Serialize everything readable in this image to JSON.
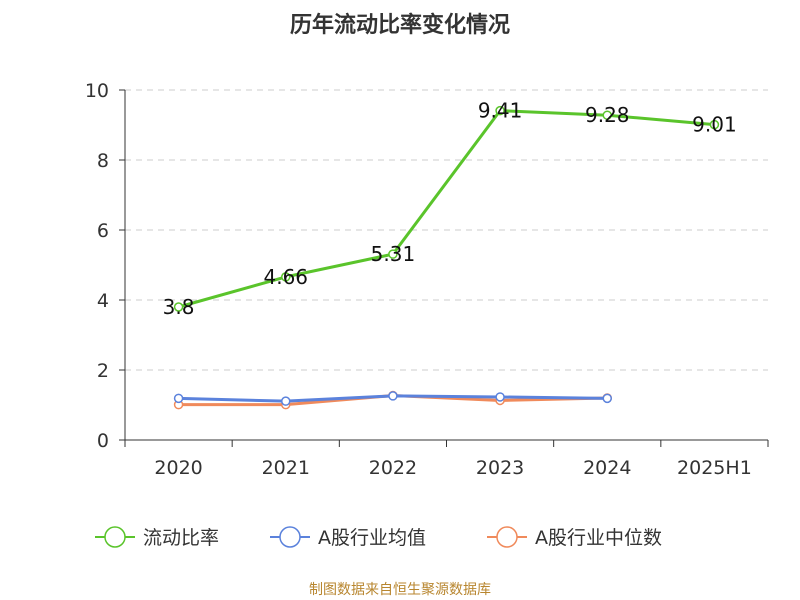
{
  "chart_data": {
    "type": "line",
    "title": "历年流动比率变化情况",
    "categories": [
      "2020",
      "2021",
      "2022",
      "2023",
      "2024",
      "2025H1"
    ],
    "ylim": [
      0,
      10
    ],
    "yticks": [
      0,
      2,
      4,
      6,
      8,
      10
    ],
    "grid": true,
    "legend_position": "bottom",
    "series": [
      {
        "name": "流动比率",
        "color": "#5ac42b",
        "values": [
          3.8,
          4.66,
          5.31,
          9.41,
          9.28,
          9.01
        ],
        "labels": [
          "3.8",
          "4.66",
          "5.31",
          "9.41",
          "9.28",
          "9.01"
        ]
      },
      {
        "name": "A股行业均值",
        "color": "#5b82dc",
        "values": [
          1.19,
          1.11,
          1.26,
          1.23,
          1.19,
          null
        ]
      },
      {
        "name": "A股行业中位数",
        "color": "#f08a5b",
        "values": [
          1.01,
          1.01,
          1.27,
          1.13,
          1.2,
          null
        ]
      }
    ],
    "source": "制图数据来自恒生聚源数据库"
  }
}
